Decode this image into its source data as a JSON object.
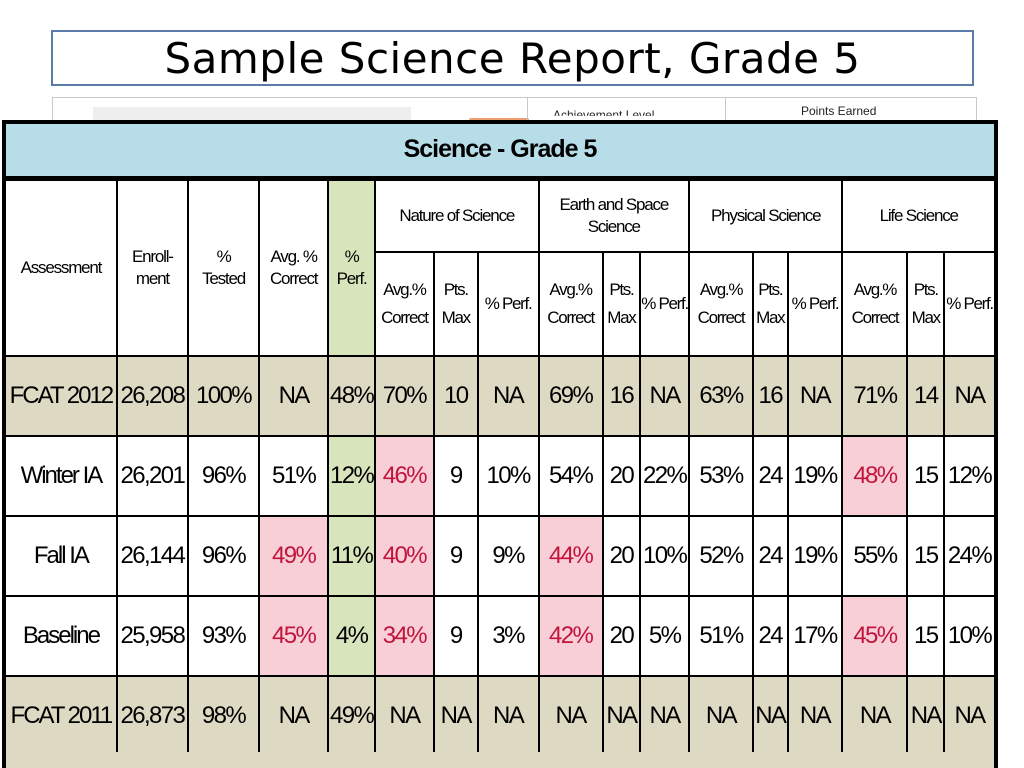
{
  "slide": {
    "title": "Sample Science Report, Grade 5"
  },
  "behind_table": {
    "col_a_text": "Achievement Level",
    "col_b_text": "Points Earned"
  },
  "table": {
    "title": "Science - Grade 5",
    "headers": {
      "assessment": "Assessment",
      "enrollment": "Enroll-ment",
      "tested": "% Tested",
      "avg_correct": "Avg. % Correct",
      "perf": "% Perf."
    },
    "groups": [
      "Nature of Science",
      "Earth and Space Science",
      "Physical Science",
      "Life Science"
    ],
    "sub_headers": [
      "Avg.% Correct",
      "Pts. Max",
      "% Perf."
    ],
    "rows": [
      {
        "assessment": "FCAT 2012",
        "enrollment": "26,208",
        "tested": "100%",
        "avg_correct": "NA",
        "perf": "48%",
        "groups": [
          [
            "70%",
            "10",
            "NA"
          ],
          [
            "69%",
            "16",
            "NA"
          ],
          [
            "63%",
            "16",
            "NA"
          ],
          [
            "71%",
            "14",
            "NA"
          ]
        ]
      },
      {
        "assessment": "Winter IA",
        "enrollment": "26,201",
        "tested": "96%",
        "avg_correct": "51%",
        "perf": "12%",
        "groups": [
          [
            "46%",
            "9",
            "10%"
          ],
          [
            "54%",
            "20",
            "22%"
          ],
          [
            "53%",
            "24",
            "19%"
          ],
          [
            "48%",
            "15",
            "12%"
          ]
        ]
      },
      {
        "assessment": "Fall IA",
        "enrollment": "26,144",
        "tested": "96%",
        "avg_correct": "49%",
        "perf": "11%",
        "groups": [
          [
            "40%",
            "9",
            "9%"
          ],
          [
            "44%",
            "20",
            "10%"
          ],
          [
            "52%",
            "24",
            "19%"
          ],
          [
            "55%",
            "15",
            "24%"
          ]
        ]
      },
      {
        "assessment": "Baseline",
        "enrollment": "25,958",
        "tested": "93%",
        "avg_correct": "45%",
        "perf": "4%",
        "groups": [
          [
            "34%",
            "9",
            "3%"
          ],
          [
            "42%",
            "20",
            "5%"
          ],
          [
            "51%",
            "24",
            "17%"
          ],
          [
            "45%",
            "15",
            "10%"
          ]
        ]
      },
      {
        "assessment": "FCAT 2011",
        "enrollment": "26,873",
        "tested": "98%",
        "avg_correct": "NA",
        "perf": "49%",
        "groups": [
          [
            "NA",
            "NA",
            "NA"
          ],
          [
            "NA",
            "NA",
            "NA"
          ],
          [
            "NA",
            "NA",
            "NA"
          ],
          [
            "NA",
            "NA",
            "NA"
          ]
        ]
      }
    ],
    "highlight_color": "#f9cfd7",
    "highlight_text_color": "#c0143c",
    "title_bg": "#b7dde8",
    "tan_row_bg": "#ddd9c3",
    "perf_col_bg": "#d7e4bc"
  }
}
